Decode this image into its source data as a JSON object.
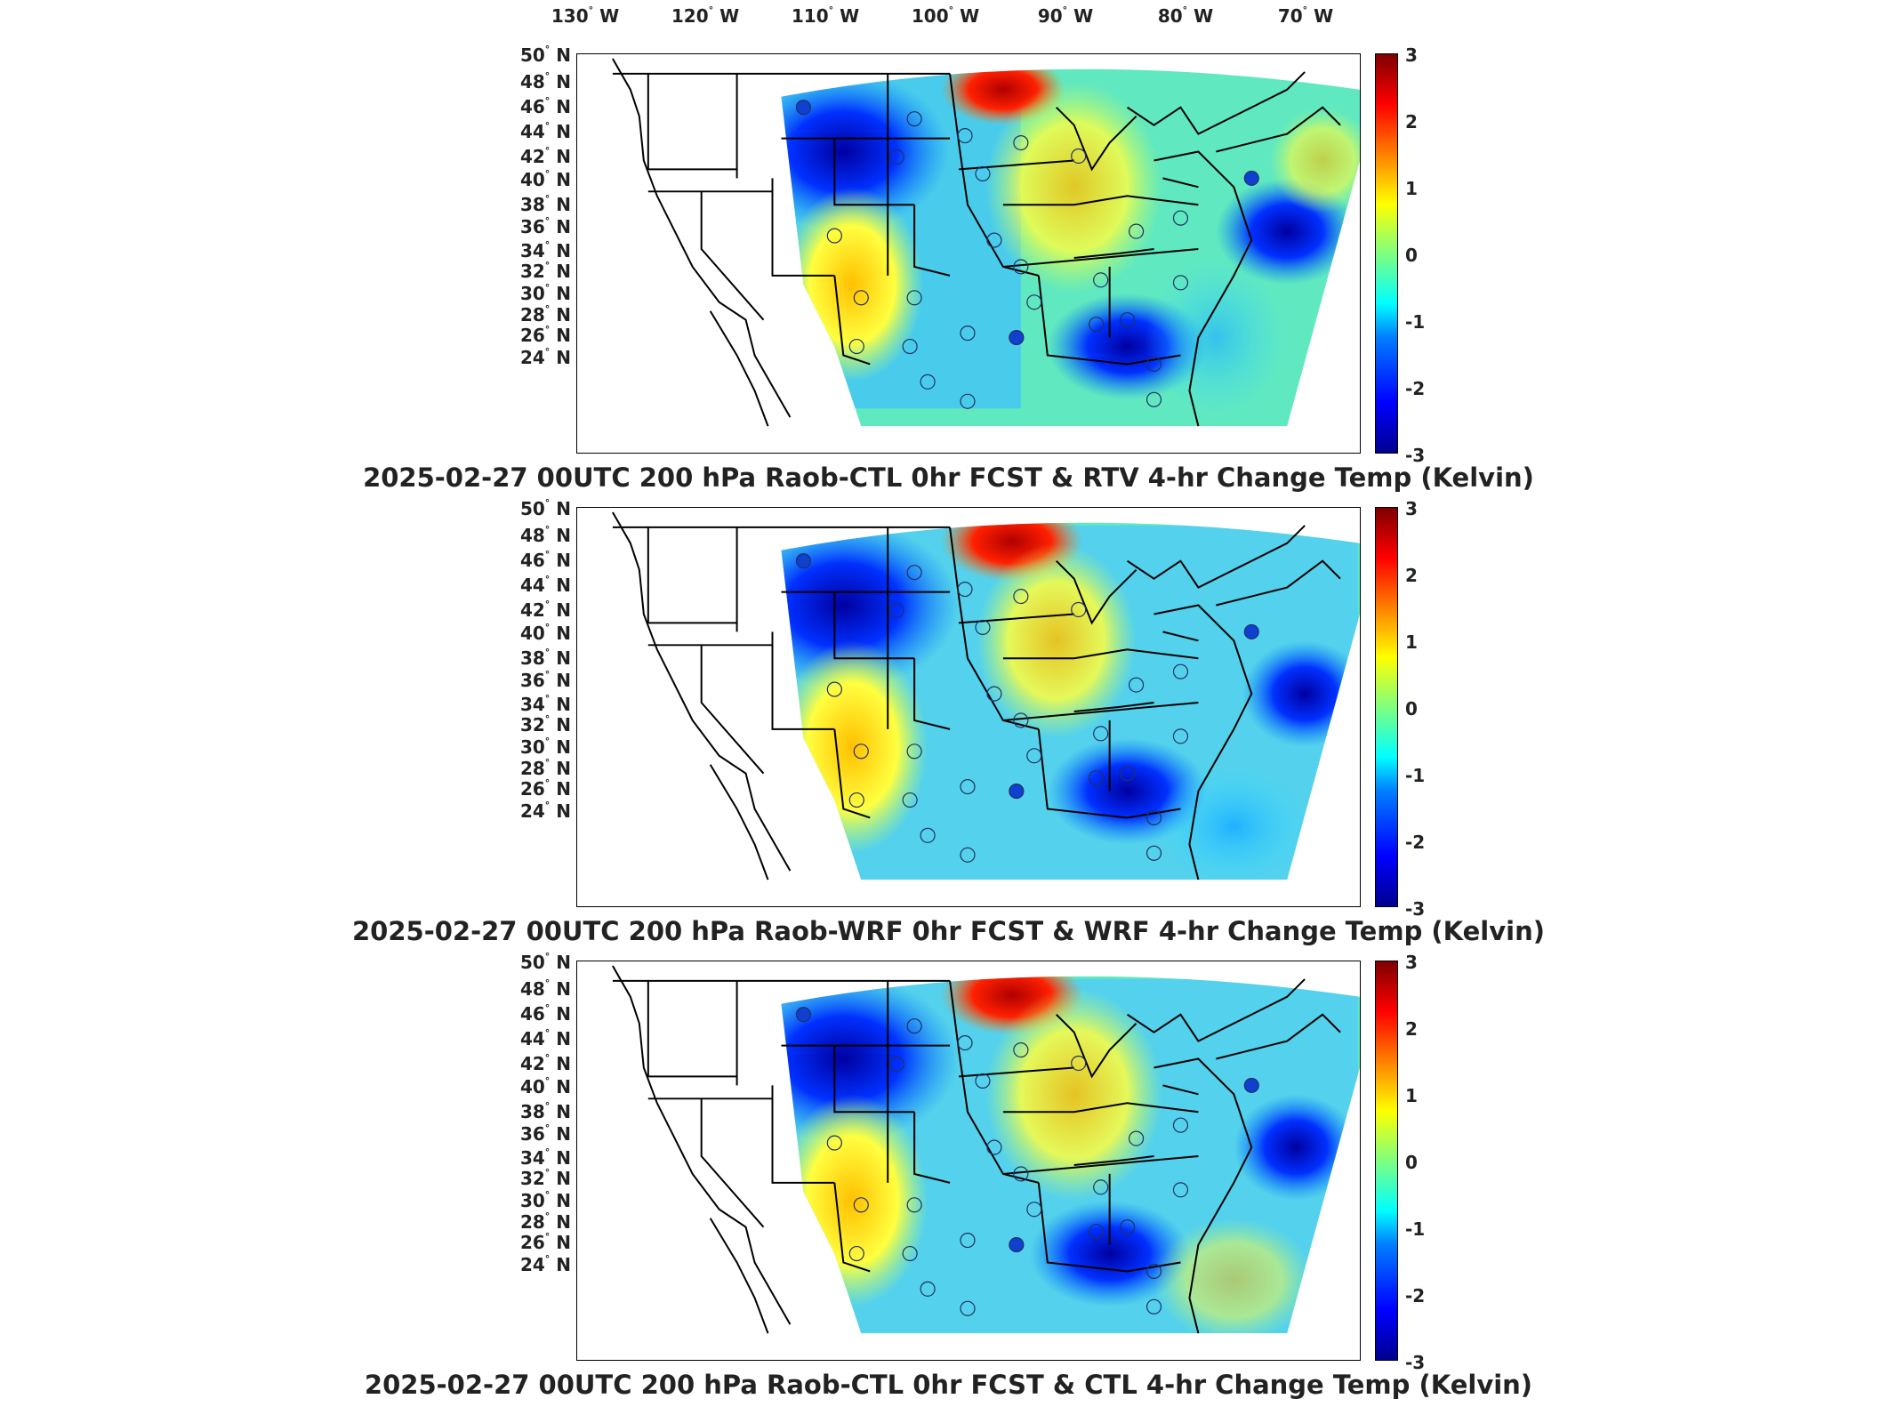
{
  "lon_labels": [
    {
      "deg": "130",
      "hemi": "W"
    },
    {
      "deg": "120",
      "hemi": "W"
    },
    {
      "deg": "110",
      "hemi": "W"
    },
    {
      "deg": "100",
      "hemi": "W"
    },
    {
      "deg": "90",
      "hemi": "W"
    },
    {
      "deg": "80",
      "hemi": "W"
    },
    {
      "deg": "70",
      "hemi": "W"
    }
  ],
  "lat_labels": [
    {
      "deg": "50",
      "hemi": "N"
    },
    {
      "deg": "48",
      "hemi": "N"
    },
    {
      "deg": "46",
      "hemi": "N"
    },
    {
      "deg": "44",
      "hemi": "N"
    },
    {
      "deg": "42",
      "hemi": "N"
    },
    {
      "deg": "40",
      "hemi": "N"
    },
    {
      "deg": "38",
      "hemi": "N"
    },
    {
      "deg": "36",
      "hemi": "N"
    },
    {
      "deg": "34",
      "hemi": "N"
    },
    {
      "deg": "32",
      "hemi": "N"
    },
    {
      "deg": "30",
      "hemi": "N"
    },
    {
      "deg": "28",
      "hemi": "N"
    },
    {
      "deg": "26",
      "hemi": "N"
    },
    {
      "deg": "24",
      "hemi": "N"
    }
  ],
  "colorbar": {
    "ticks": [
      "3",
      "2",
      "1",
      "0",
      "-1",
      "-2",
      "-3"
    ],
    "range": [
      -3,
      3
    ],
    "colormap": [
      "#00008f",
      "#0000ff",
      "#007fff",
      "#00ffff",
      "#7fff7f",
      "#ffff00",
      "#ff7f00",
      "#ff0000",
      "#7f0000"
    ]
  },
  "panels": [
    {
      "title": "2025-02-27 00UTC 200 hPa Raob-CTL 0hr FCST & RTV 4-hr Change Temp (Kelvin)"
    },
    {
      "title": "2025-02-27 00UTC 200 hPa Raob-WRF 0hr FCST & WRF 4-hr Change Temp (Kelvin)"
    },
    {
      "title": "2025-02-27 00UTC 200 hPa Raob-CTL 0hr FCST & CTL 4-hr Change Temp (Kelvin)"
    }
  ]
}
